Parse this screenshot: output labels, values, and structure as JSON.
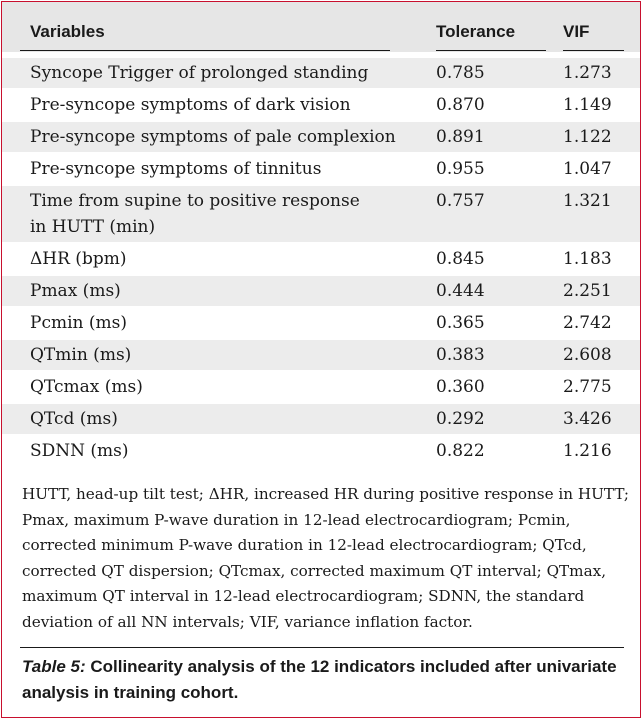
{
  "header": {
    "variables": "Variables",
    "tolerance": "Tolerance",
    "vif": "VIF"
  },
  "rows": [
    {
      "variable": "Syncope Trigger of prolonged standing",
      "variable_line2": "",
      "tolerance": "0.785",
      "vif": "1.273"
    },
    {
      "variable": "Pre-syncope symptoms of dark vision",
      "variable_line2": "",
      "tolerance": "0.870",
      "vif": "1.149"
    },
    {
      "variable": "Pre-syncope symptoms of pale complexion",
      "variable_line2": "",
      "tolerance": "0.891",
      "vif": "1.122"
    },
    {
      "variable": "Pre-syncope symptoms of tinnitus",
      "variable_line2": "",
      "tolerance": "0.955",
      "vif": "1.047"
    },
    {
      "variable": "Time from supine to positive response",
      "variable_line2": "in HUTT (min)",
      "tolerance": "0.757",
      "vif": "1.321"
    },
    {
      "variable": "ΔHR (bpm)",
      "variable_line2": "",
      "tolerance": "0.845",
      "vif": "1.183"
    },
    {
      "variable": "Pmax (ms)",
      "variable_line2": "",
      "tolerance": "0.444",
      "vif": "2.251"
    },
    {
      "variable": "Pcmin (ms)",
      "variable_line2": "",
      "tolerance": "0.365",
      "vif": "2.742"
    },
    {
      "variable": "QTmin (ms)",
      "variable_line2": "",
      "tolerance": "0.383",
      "vif": "2.608"
    },
    {
      "variable": "QTcmax (ms)",
      "variable_line2": "",
      "tolerance": "0.360",
      "vif": "2.775"
    },
    {
      "variable": "QTcd (ms)",
      "variable_line2": "",
      "tolerance": "0.292",
      "vif": "3.426"
    },
    {
      "variable": "SDNN (ms)",
      "variable_line2": "",
      "tolerance": "0.822",
      "vif": "1.216"
    }
  ],
  "footnote": "HUTT, head-up tilt test; ΔHR, increased HR during positive response in HUTT; Pmax, maximum P-wave duration in 12-lead electrocardiogram; Pcmin, corrected minimum P-wave duration in 12-lead electrocardiogram; QTcd, corrected QT dispersion; QTcmax, corrected maximum QT interval; QTmax, maximum QT interval in 12-lead electrocardiogram; SDNN, the standard deviation of all NN intervals; VIF, variance inflation factor.",
  "caption": {
    "label": "Table 5:",
    "text": " Collinearity analysis of the 12 indicators included after univariate analysis in training cohort."
  }
}
